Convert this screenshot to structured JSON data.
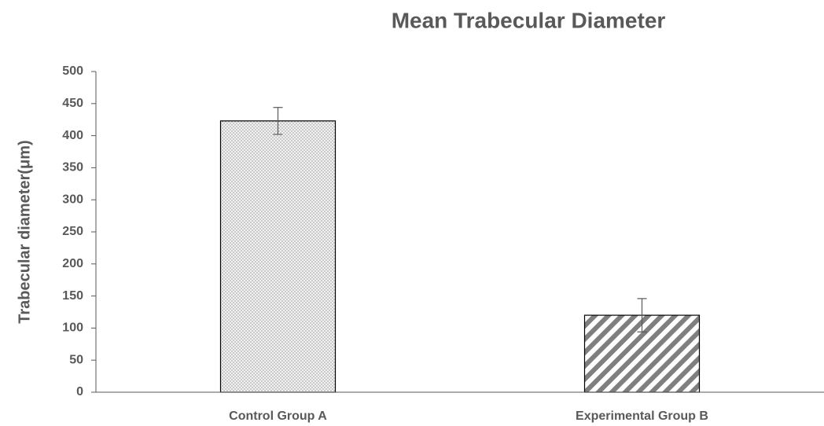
{
  "chart_data": {
    "type": "bar",
    "title": "Mean Trabecular Diameter",
    "y_label": "Trabecular diameter(μm)",
    "categories": [
      "Control Group A",
      "Experimental Group B"
    ],
    "values": [
      423,
      120
    ],
    "errors": [
      21,
      26
    ],
    "patterns": [
      "dots",
      "diagonal-stripes"
    ],
    "color": "#595959",
    "ylim": [
      0,
      500
    ],
    "yticks": [
      0,
      50,
      100,
      150,
      200,
      250,
      300,
      350,
      400,
      450,
      500
    ],
    "grid": false
  }
}
